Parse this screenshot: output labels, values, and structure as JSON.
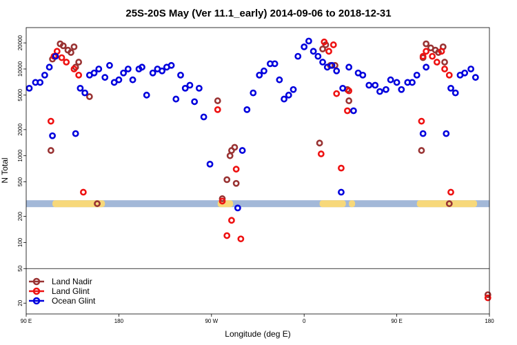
{
  "chart_data": {
    "type": "scatter",
    "title": "25S-20S May (Ver 11.1_early)   2014-09-06 to 2018-12-31",
    "xlabel": "Longitude (deg E)",
    "ylabel": "N Total",
    "xscale": "linear",
    "yscale": "log",
    "xlim": [
      90,
      390
    ],
    "ylim": [
      15,
      30000
    ],
    "x_ticks": [
      {
        "value": 90,
        "label": "90 E"
      },
      {
        "value": 150,
        "label": "180"
      },
      {
        "value": 210,
        "label": "90 W"
      },
      {
        "value": 270,
        "label": "0"
      },
      {
        "value": 330,
        "label": "90 E"
      },
      {
        "value": 390,
        "label": "180"
      }
    ],
    "y_ticks": [
      {
        "value": 20,
        "label": "20"
      },
      {
        "value": 50,
        "label": "50"
      },
      {
        "value": 100,
        "label": "100"
      },
      {
        "value": 200,
        "label": "200"
      },
      {
        "value": 500,
        "label": "500"
      },
      {
        "value": 1000,
        "label": "1000"
      },
      {
        "value": 2000,
        "label": "2000"
      },
      {
        "value": 5000,
        "label": "5000"
      },
      {
        "value": 10000,
        "label": "10000"
      },
      {
        "value": 20000,
        "label": "20000"
      }
    ],
    "separator_y": 50,
    "surface_band": {
      "y_value": 280,
      "ocean_color": "#a3b8d8",
      "land_color": "#f7d87a",
      "land_segments": [
        [
          107,
          140
        ],
        [
          133,
          141
        ],
        [
          214,
          224
        ],
        [
          280,
          297
        ],
        [
          299,
          303
        ],
        [
          343,
          382
        ]
      ]
    },
    "series": [
      {
        "name": "Land Nadir",
        "color": "#993333",
        "points": [
          [
            106,
            1150
          ],
          [
            107,
            13000
          ],
          [
            112,
            19500
          ],
          [
            114,
            18500
          ],
          [
            117,
            16500
          ],
          [
            119,
            15500
          ],
          [
            121,
            18000
          ],
          [
            122,
            10500
          ],
          [
            124,
            12000
          ],
          [
            131,
            4800
          ],
          [
            136,
            280
          ],
          [
            214,
            4300
          ],
          [
            217,
            320
          ],
          [
            220,
            530
          ],
          [
            222,
            1000
          ],
          [
            223,
            1150
          ],
          [
            225,
            1250
          ],
          [
            226,
            480
          ],
          [
            280,
            1400
          ],
          [
            282,
            17000
          ],
          [
            284,
            19000
          ],
          [
            287,
            11000
          ],
          [
            290,
            11000
          ],
          [
            298,
            5800
          ],
          [
            299,
            4300
          ],
          [
            346,
            1150
          ],
          [
            347,
            13500
          ],
          [
            349,
            19500
          ],
          [
            352,
            17500
          ],
          [
            355,
            16500
          ],
          [
            357,
            15500
          ],
          [
            360,
            18000
          ],
          [
            361,
            12000
          ],
          [
            364,
            280
          ],
          [
            389,
            25
          ]
        ]
      },
      {
        "name": "Land Glint",
        "color": "#ee1111",
        "points": [
          [
            106,
            2500
          ],
          [
            108,
            14000
          ],
          [
            110,
            16000
          ],
          [
            113,
            13500
          ],
          [
            116,
            12000
          ],
          [
            121,
            10000
          ],
          [
            124,
            8500
          ],
          [
            127,
            380
          ],
          [
            214,
            3400
          ],
          [
            217,
            300
          ],
          [
            220,
            120
          ],
          [
            223,
            180
          ],
          [
            226,
            700
          ],
          [
            229,
            110
          ],
          [
            281,
            1050
          ],
          [
            283,
            20500
          ],
          [
            286,
            16000
          ],
          [
            289,
            19000
          ],
          [
            291,
            5200
          ],
          [
            294,
            720
          ],
          [
            298,
            3300
          ],
          [
            299,
            5600
          ],
          [
            346,
            2500
          ],
          [
            347,
            14000
          ],
          [
            349,
            16000
          ],
          [
            353,
            14000
          ],
          [
            356,
            12000
          ],
          [
            359,
            16000
          ],
          [
            361,
            10000
          ],
          [
            364,
            8500
          ],
          [
            365,
            380
          ],
          [
            389,
            23
          ]
        ]
      },
      {
        "name": "Ocean Glint",
        "color": "#0000dd",
        "points": [
          [
            92,
            6000
          ],
          [
            96,
            7000
          ],
          [
            99,
            7000
          ],
          [
            102,
            8500
          ],
          [
            105,
            10500
          ],
          [
            107,
            1700
          ],
          [
            109,
            14000
          ],
          [
            122,
            1800
          ],
          [
            125,
            6000
          ],
          [
            128,
            5300
          ],
          [
            131,
            8500
          ],
          [
            134,
            9000
          ],
          [
            137,
            10000
          ],
          [
            141,
            8000
          ],
          [
            144,
            11000
          ],
          [
            147,
            7000
          ],
          [
            150,
            7500
          ],
          [
            153,
            9000
          ],
          [
            156,
            10000
          ],
          [
            159,
            7500
          ],
          [
            163,
            10000
          ],
          [
            165,
            10500
          ],
          [
            168,
            5000
          ],
          [
            172,
            9000
          ],
          [
            175,
            10000
          ],
          [
            178,
            9500
          ],
          [
            181,
            10500
          ],
          [
            184,
            11000
          ],
          [
            187,
            4500
          ],
          [
            190,
            8500
          ],
          [
            193,
            6000
          ],
          [
            196,
            6500
          ],
          [
            199,
            4200
          ],
          [
            202,
            6000
          ],
          [
            205,
            2800
          ],
          [
            209,
            800
          ],
          [
            227,
            250
          ],
          [
            230,
            1150
          ],
          [
            233,
            3400
          ],
          [
            237,
            5300
          ],
          [
            241,
            8500
          ],
          [
            244,
            9500
          ],
          [
            248,
            11500
          ],
          [
            251,
            11500
          ],
          [
            254,
            7500
          ],
          [
            257,
            4500
          ],
          [
            260,
            5000
          ],
          [
            263,
            5800
          ],
          [
            266,
            14000
          ],
          [
            270,
            18000
          ],
          [
            273,
            21000
          ],
          [
            276,
            16000
          ],
          [
            279,
            14000
          ],
          [
            282,
            12000
          ],
          [
            285,
            10500
          ],
          [
            288,
            11000
          ],
          [
            291,
            9500
          ],
          [
            294,
            380
          ],
          [
            295,
            6000
          ],
          [
            299,
            10500
          ],
          [
            302,
            3300
          ],
          [
            305,
            9000
          ],
          [
            308,
            8500
          ],
          [
            312,
            6500
          ],
          [
            316,
            6500
          ],
          [
            319,
            5500
          ],
          [
            323,
            5800
          ],
          [
            326,
            7500
          ],
          [
            330,
            7000
          ],
          [
            333,
            5800
          ],
          [
            337,
            7000
          ],
          [
            340,
            7000
          ],
          [
            343,
            8500
          ],
          [
            347,
            1800
          ],
          [
            349,
            10500
          ],
          [
            362,
            1800
          ],
          [
            365,
            6000
          ],
          [
            368,
            5300
          ],
          [
            371,
            8500
          ],
          [
            374,
            9000
          ],
          [
            378,
            10000
          ],
          [
            381,
            8000
          ]
        ]
      }
    ]
  }
}
